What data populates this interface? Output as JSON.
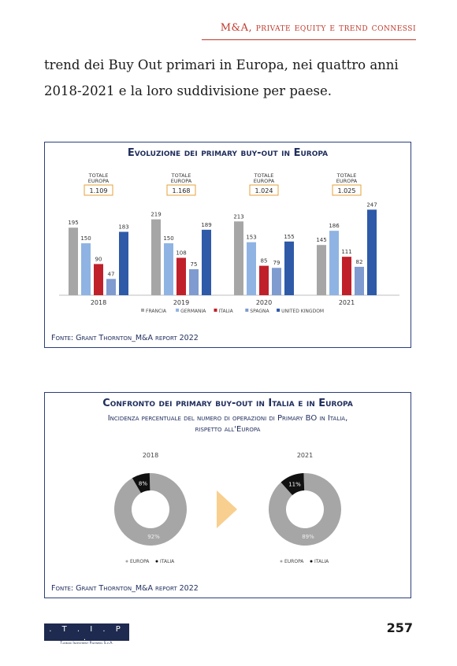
{
  "header": {
    "title": "M&A, private equity e trend connessi"
  },
  "body_text": "trend dei Buy Out primari in Europa, nei quattro anni 2018-2021 e la loro suddivisione per paese.",
  "page_number": "257",
  "logo": {
    "mark": ". T . I . P .",
    "subtitle": "Tamburi Investment Partners S.p.A."
  },
  "colors": {
    "francia": "#a6a6a6",
    "germania": "#8fb4e3",
    "italia": "#c0202a",
    "spagna": "#7f9bd0",
    "uk": "#2e5aa8",
    "europa_donut": "#a6a6a6",
    "italia_donut": "#111111",
    "arrow": "#f8cf8e",
    "frame": "#2d3f7a"
  },
  "chart_data": [
    {
      "type": "bar",
      "title": "Evoluzione dei primary buy-out in Europa",
      "categories": [
        "2018",
        "2019",
        "2020",
        "2021"
      ],
      "totals_label": "Totale Europa",
      "totals": [
        "1.109",
        "1.168",
        "1.024",
        "1.025"
      ],
      "series": [
        {
          "name": "Francia",
          "values": [
            195,
            219,
            213,
            145
          ]
        },
        {
          "name": "Germania",
          "values": [
            150,
            150,
            153,
            186
          ]
        },
        {
          "name": "Italia",
          "values": [
            90,
            108,
            85,
            111
          ]
        },
        {
          "name": "Spagna",
          "values": [
            47,
            75,
            79,
            82
          ]
        },
        {
          "name": "United Kingdom",
          "values": [
            183,
            189,
            155,
            247
          ]
        }
      ],
      "ylim": [
        0,
        260
      ],
      "legend_position": "bottom",
      "source": "Fonte: Grant Thornton_M&A report 2022"
    },
    {
      "type": "pie",
      "title": "Confronto dei primary buy-out in Italia e in Europa",
      "subtitle_line1": "Incidenza percentuale del numero di operazioni di Primary BO in Italia,",
      "subtitle_line2": "rispetto all'Europa",
      "charts": [
        {
          "label": "2018",
          "slices": [
            {
              "name": "Europa",
              "value": 92,
              "label": "92%"
            },
            {
              "name": "Italia",
              "value": 8,
              "label": "8%"
            }
          ]
        },
        {
          "label": "2021",
          "slices": [
            {
              "name": "Europa",
              "value": 89,
              "label": "89%"
            },
            {
              "name": "Italia",
              "value": 11,
              "label": "11%"
            }
          ]
        }
      ],
      "legend": [
        "Europa",
        "Italia"
      ],
      "source": "Fonte: Grant Thornton_M&A report 2022"
    }
  ]
}
